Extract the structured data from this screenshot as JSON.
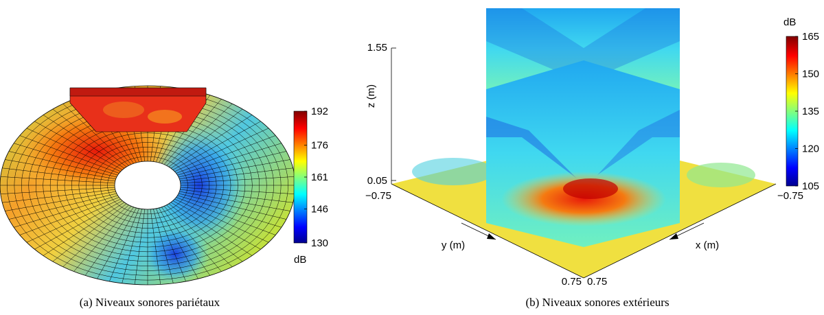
{
  "panels": [
    {
      "caption": "(a)  Niveaux sonores pariétaux",
      "colorbar": {
        "label": "dB",
        "clim": [
          130,
          192
        ],
        "ticks": [
          130,
          146,
          161,
          176,
          192
        ]
      }
    },
    {
      "caption": "(b)  Niveaux sonores extérieurs",
      "colorbar": {
        "label": "dB",
        "clim": [
          105,
          165
        ],
        "ticks": [
          105,
          120,
          135,
          150,
          165
        ]
      },
      "axes": {
        "z_label": "z (m)",
        "y_label": "y (m)",
        "x_label": "x (m)",
        "z_top": "1.55",
        "z_bottom": "0.05",
        "y_start": "−0.75",
        "y_end": "0.75",
        "x_start": "0.75",
        "x_end": "−0.75"
      }
    }
  ]
}
